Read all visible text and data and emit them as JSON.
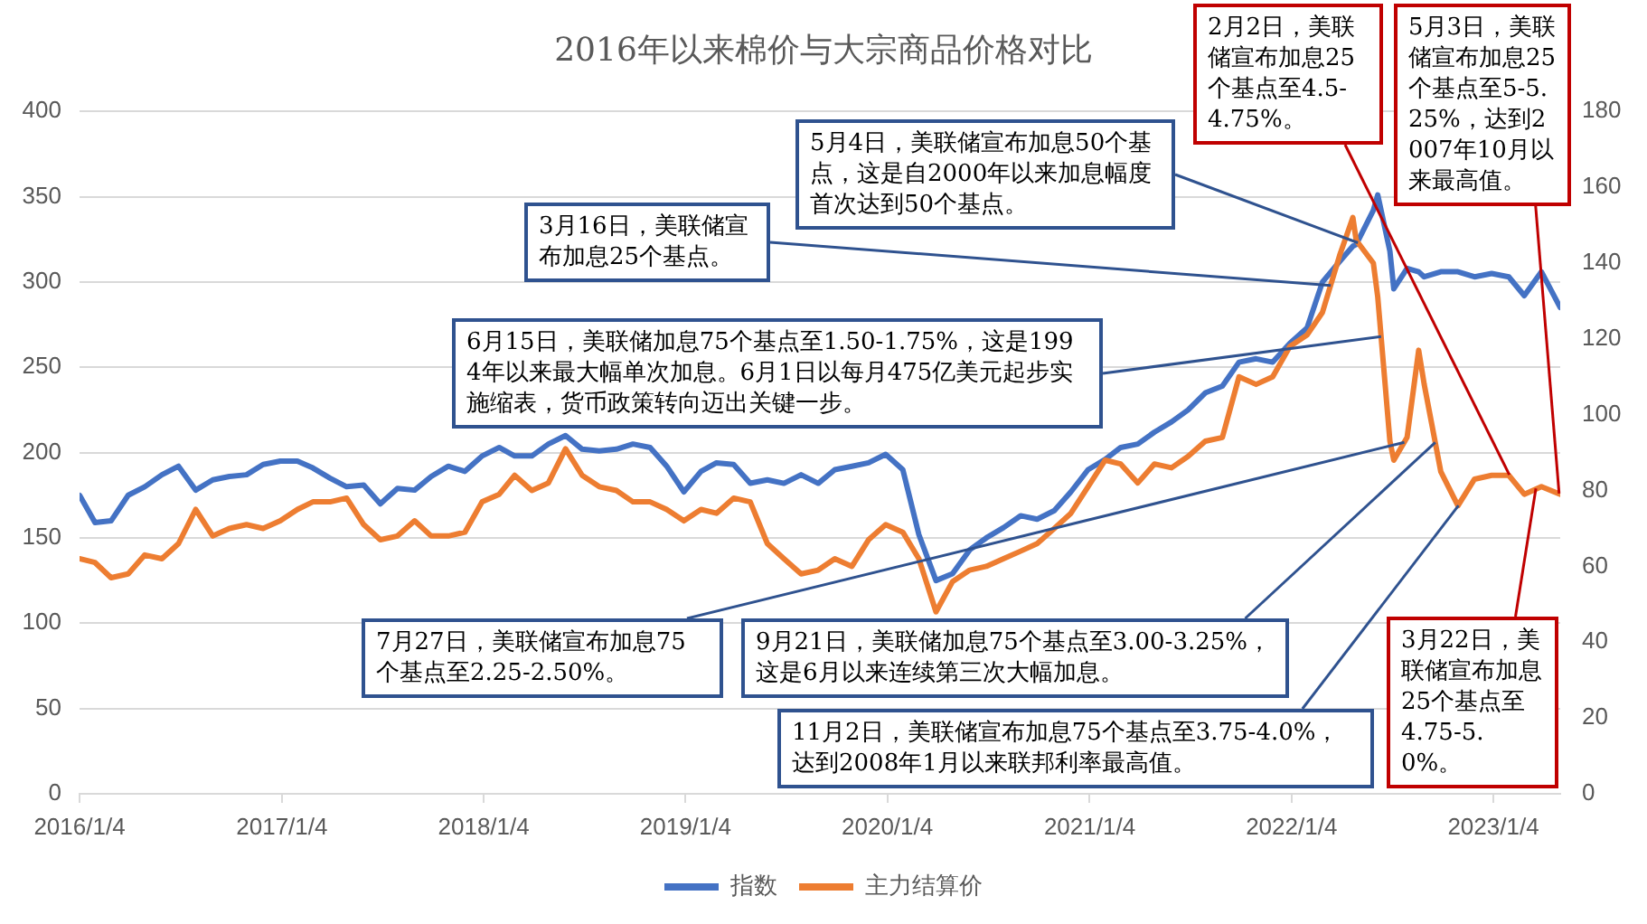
{
  "chart_data": {
    "type": "line",
    "title": "2016年以来棉价与大宗商品价格对比",
    "x": [
      "2016-01-04",
      "2016-02-01",
      "2016-03-01",
      "2016-04-01",
      "2016-05-01",
      "2016-06-01",
      "2016-07-01",
      "2016-08-01",
      "2016-09-01",
      "2016-10-01",
      "2016-11-01",
      "2016-12-01",
      "2017-01-01",
      "2017-02-01",
      "2017-03-01",
      "2017-04-01",
      "2017-05-01",
      "2017-06-01",
      "2017-07-01",
      "2017-08-01",
      "2017-09-01",
      "2017-10-01",
      "2017-11-01",
      "2017-12-01",
      "2018-01-01",
      "2018-02-01",
      "2018-03-01",
      "2018-04-01",
      "2018-05-01",
      "2018-06-01",
      "2018-07-01",
      "2018-08-01",
      "2018-09-01",
      "2018-10-01",
      "2018-11-01",
      "2018-12-01",
      "2019-01-01",
      "2019-02-01",
      "2019-03-01",
      "2019-04-01",
      "2019-05-01",
      "2019-06-01",
      "2019-07-01",
      "2019-08-01",
      "2019-09-01",
      "2019-10-01",
      "2019-11-01",
      "2019-12-01",
      "2020-01-01",
      "2020-02-01",
      "2020-03-01",
      "2020-04-01",
      "2020-05-01",
      "2020-06-01",
      "2020-07-01",
      "2020-08-01",
      "2020-09-01",
      "2020-10-01",
      "2020-11-01",
      "2020-12-01",
      "2021-01-01",
      "2021-02-01",
      "2021-03-01",
      "2021-04-01",
      "2021-05-01",
      "2021-06-01",
      "2021-07-01",
      "2021-08-01",
      "2021-09-01",
      "2021-10-01",
      "2021-11-01",
      "2021-12-01",
      "2022-01-01",
      "2022-02-01",
      "2022-03-01",
      "2022-04-01",
      "2022-04-25",
      "2022-05-01",
      "2022-06-01",
      "2022-06-09",
      "2022-07-01",
      "2022-07-08",
      "2022-08-01",
      "2022-08-22",
      "2022-09-01",
      "2022-10-01",
      "2022-11-01",
      "2022-12-01",
      "2023-01-01",
      "2023-02-01",
      "2023-03-01",
      "2023-04-01",
      "2023-05-05"
    ],
    "series": [
      {
        "name": "指数",
        "color": "#4472c4",
        "values": [
          175,
          159,
          160,
          175,
          180,
          187,
          192,
          178,
          184,
          186,
          187,
          193,
          195,
          195,
          191,
          185,
          180,
          181,
          170,
          179,
          178,
          186,
          192,
          189,
          198,
          203,
          198,
          198,
          205,
          210,
          202,
          201,
          202,
          205,
          203,
          192,
          177,
          189,
          194,
          193,
          182,
          184,
          182,
          187,
          182,
          190,
          192,
          194,
          199,
          190,
          152,
          125,
          129,
          143,
          150,
          156,
          163,
          161,
          166,
          177,
          190,
          196,
          203,
          205,
          212,
          218,
          225,
          235,
          239,
          253,
          255,
          253,
          264,
          273,
          300,
          312,
          321,
          322,
          342,
          351,
          318,
          296,
          308,
          306,
          303,
          306,
          306,
          303,
          305,
          303,
          292,
          306,
          285
        ]
      },
      {
        "name": "主力结算价",
        "color": "#ed7d31",
        "axis": "y2",
        "values": [
          62,
          61,
          57,
          58,
          63,
          62,
          66,
          75,
          68,
          70,
          71,
          70,
          72,
          75,
          77,
          77,
          78,
          71,
          67,
          68,
          72,
          68,
          68,
          69,
          77,
          79,
          84,
          80,
          82,
          91,
          84,
          81,
          80,
          77,
          77,
          75,
          72,
          75,
          74,
          78,
          77,
          66,
          62,
          58,
          59,
          62,
          60,
          67,
          71,
          69,
          62,
          48,
          56,
          59,
          60,
          62,
          64,
          66,
          70,
          74,
          81,
          88,
          87,
          82,
          87,
          86,
          89,
          93,
          94,
          110,
          108,
          110,
          118,
          121,
          127,
          142,
          152,
          146,
          140,
          131,
          93,
          88,
          94,
          117,
          108,
          85,
          76,
          83,
          84,
          84,
          79,
          81,
          79
        ]
      }
    ],
    "xlim": [
      "2016-01-04",
      "2023-05-05"
    ],
    "xticks": [
      {
        "value": "2016-01-04",
        "label": "2016/1/4"
      },
      {
        "value": "2017-01-04",
        "label": "2017/1/4"
      },
      {
        "value": "2018-01-04",
        "label": "2018/1/4"
      },
      {
        "value": "2019-01-04",
        "label": "2019/1/4"
      },
      {
        "value": "2020-01-04",
        "label": "2020/1/4"
      },
      {
        "value": "2021-01-04",
        "label": "2021/1/4"
      },
      {
        "value": "2022-01-04",
        "label": "2022/1/4"
      },
      {
        "value": "2023-01-04",
        "label": "2023/1/4"
      }
    ],
    "ylim": [
      0,
      400
    ],
    "yticks": [
      0,
      50,
      100,
      150,
      200,
      250,
      300,
      350,
      400
    ],
    "y2lim": [
      0,
      180
    ],
    "y2ticks": [
      0,
      20,
      40,
      60,
      80,
      100,
      120,
      140,
      160,
      180
    ],
    "grid": "y",
    "legend": "bottom",
    "annotations": [
      {
        "text": "3月16日，美联储宣布加息25个基点。",
        "x": "2022-03-16",
        "y": 298
      },
      {
        "text": "5月4日，美联储宣布加息50个基点，这是自2000年以来加息幅度首次达到50个基点。",
        "x": "2022-05-04",
        "y": 323
      },
      {
        "text": "6月15日，美联储加息75个基点至1.50-1.75%，这是1994年以来最大幅单次加息。6月1日以每月475亿美元起步实施缩表，货币政策转向迈出关键一步。",
        "x": "2022-06-15",
        "y": 268
      },
      {
        "text": "7月27日，美联储宣布加息75个基点至2.25-2.50%。",
        "x": "2022-07-27",
        "y": 206
      },
      {
        "text": "9月21日，美联储加息75个基点至3.00-3.25%，这是6月以来连续第三次大幅加息。",
        "x": "2022-09-21",
        "y": 206
      },
      {
        "text": "11月2日，美联储宣布加息75个基点至3.75-4.0%，达到2008年1月以来联邦利率最高值。",
        "x": "2022-11-02",
        "y": 169
      },
      {
        "text": "2月2日，美联储宣布加息25个基点至4.5-4.75%。",
        "x": "2023-02-02",
        "y": 187
      },
      {
        "text": "3月22日，美联储宣布加息25个基点至4.75-5.0%。",
        "x": "2023-03-22",
        "y": 179
      },
      {
        "text": "5月3日，美联储宣布加息25个基点至5-5.25%，达到2007年10月以来最高值。",
        "x": "2023-05-03",
        "y": 176
      }
    ]
  }
}
